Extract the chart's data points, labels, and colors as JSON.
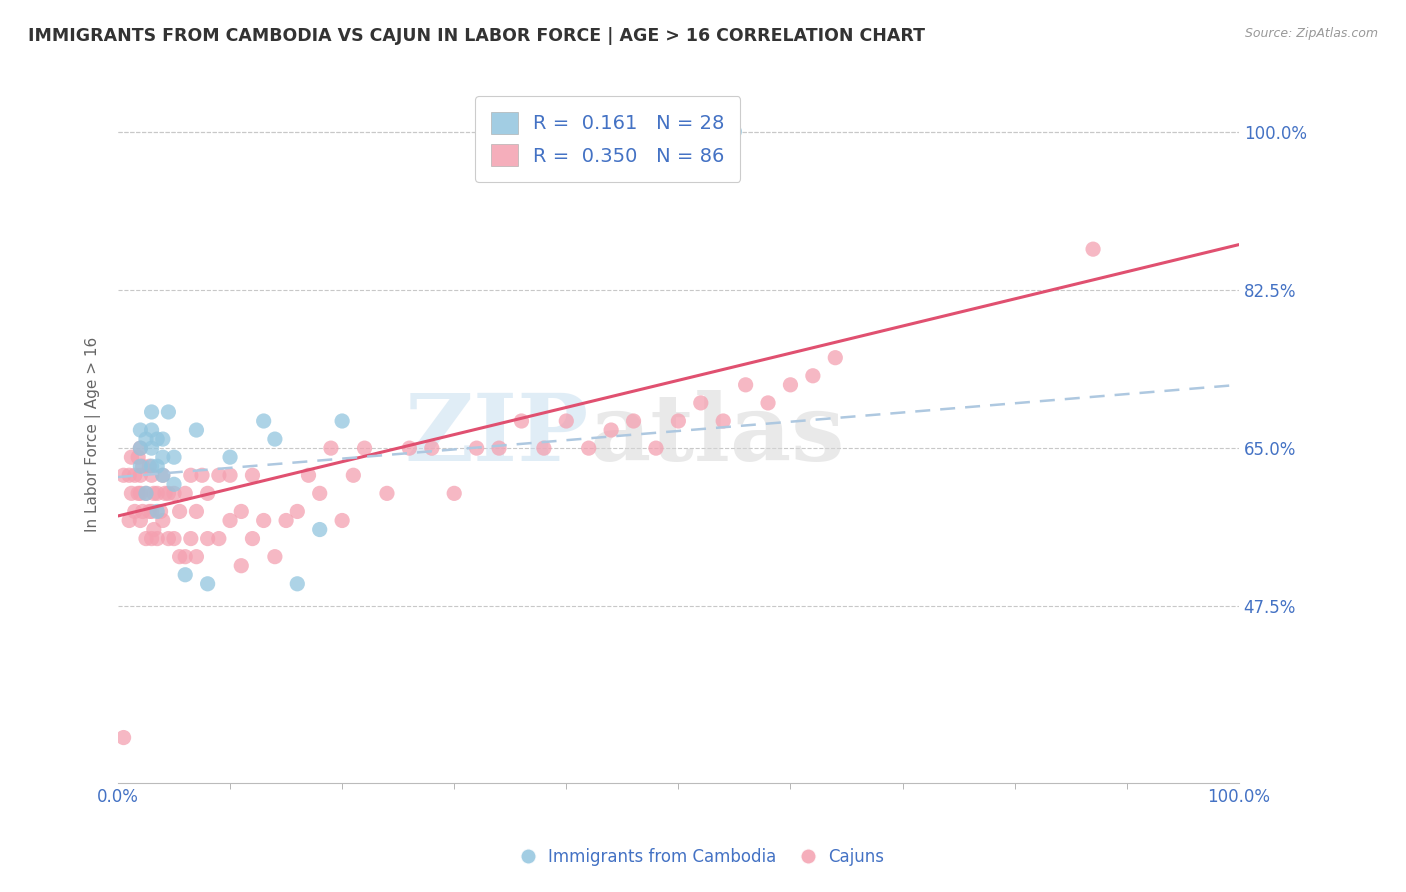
{
  "title": "IMMIGRANTS FROM CAMBODIA VS CAJUN IN LABOR FORCE | AGE > 16 CORRELATION CHART",
  "source_text": "Source: ZipAtlas.com",
  "ylabel": "In Labor Force | Age > 16",
  "xlim": [
    0.0,
    1.0
  ],
  "ylim": [
    0.28,
    1.05
  ],
  "yticks": [
    0.475,
    0.65,
    0.825,
    1.0
  ],
  "ytick_labels": [
    "47.5%",
    "65.0%",
    "82.5%",
    "100.0%"
  ],
  "xticks": [
    0.0,
    1.0
  ],
  "xtick_labels": [
    "0.0%",
    "100.0%"
  ],
  "axis_label_color": "#4472c4",
  "grid_color": "#c8c8c8",
  "blue_R": 0.161,
  "blue_N": 28,
  "pink_R": 0.35,
  "pink_N": 86,
  "blue_color": "#92c5de",
  "pink_color": "#f4a0b0",
  "blue_line_color": "#4472c4",
  "pink_line_color": "#e05070",
  "blue_scatter_x": [
    0.02,
    0.02,
    0.02,
    0.025,
    0.025,
    0.03,
    0.03,
    0.03,
    0.03,
    0.035,
    0.035,
    0.035,
    0.04,
    0.04,
    0.04,
    0.045,
    0.05,
    0.05,
    0.06,
    0.07,
    0.08,
    0.1,
    0.13,
    0.14,
    0.16,
    0.18,
    0.2,
    0.55
  ],
  "blue_scatter_y": [
    0.63,
    0.65,
    0.67,
    0.6,
    0.66,
    0.63,
    0.65,
    0.67,
    0.69,
    0.58,
    0.63,
    0.66,
    0.62,
    0.64,
    0.66,
    0.69,
    0.61,
    0.64,
    0.51,
    0.67,
    0.5,
    0.64,
    0.68,
    0.66,
    0.5,
    0.56,
    0.68,
    1.0
  ],
  "pink_scatter_x": [
    0.005,
    0.01,
    0.01,
    0.012,
    0.012,
    0.015,
    0.015,
    0.018,
    0.018,
    0.02,
    0.02,
    0.02,
    0.02,
    0.022,
    0.022,
    0.025,
    0.025,
    0.028,
    0.028,
    0.03,
    0.03,
    0.03,
    0.032,
    0.032,
    0.035,
    0.035,
    0.038,
    0.04,
    0.04,
    0.042,
    0.045,
    0.045,
    0.05,
    0.05,
    0.055,
    0.055,
    0.06,
    0.06,
    0.065,
    0.065,
    0.07,
    0.07,
    0.075,
    0.08,
    0.08,
    0.09,
    0.09,
    0.1,
    0.1,
    0.11,
    0.11,
    0.12,
    0.12,
    0.13,
    0.14,
    0.15,
    0.16,
    0.17,
    0.18,
    0.19,
    0.2,
    0.21,
    0.22,
    0.24,
    0.26,
    0.28,
    0.3,
    0.32,
    0.34,
    0.36,
    0.38,
    0.4,
    0.42,
    0.44,
    0.46,
    0.48,
    0.5,
    0.52,
    0.54,
    0.56,
    0.58,
    0.6,
    0.62,
    0.64,
    0.87,
    0.005
  ],
  "pink_scatter_y": [
    0.62,
    0.57,
    0.62,
    0.6,
    0.64,
    0.58,
    0.62,
    0.6,
    0.64,
    0.57,
    0.6,
    0.62,
    0.65,
    0.58,
    0.63,
    0.55,
    0.6,
    0.58,
    0.63,
    0.55,
    0.58,
    0.62,
    0.56,
    0.6,
    0.55,
    0.6,
    0.58,
    0.57,
    0.62,
    0.6,
    0.55,
    0.6,
    0.55,
    0.6,
    0.53,
    0.58,
    0.53,
    0.6,
    0.55,
    0.62,
    0.53,
    0.58,
    0.62,
    0.55,
    0.6,
    0.55,
    0.62,
    0.57,
    0.62,
    0.52,
    0.58,
    0.55,
    0.62,
    0.57,
    0.53,
    0.57,
    0.58,
    0.62,
    0.6,
    0.65,
    0.57,
    0.62,
    0.65,
    0.6,
    0.65,
    0.65,
    0.6,
    0.65,
    0.65,
    0.68,
    0.65,
    0.68,
    0.65,
    0.67,
    0.68,
    0.65,
    0.68,
    0.7,
    0.68,
    0.72,
    0.7,
    0.72,
    0.73,
    0.75,
    0.87,
    0.33
  ],
  "blue_trend_x": [
    0.0,
    1.0
  ],
  "blue_trend_y": [
    0.618,
    0.72
  ],
  "pink_trend_x": [
    0.0,
    1.0
  ],
  "pink_trend_y": [
    0.575,
    0.875
  ],
  "watermark_zip": "ZIP",
  "watermark_atlas": "atlas"
}
